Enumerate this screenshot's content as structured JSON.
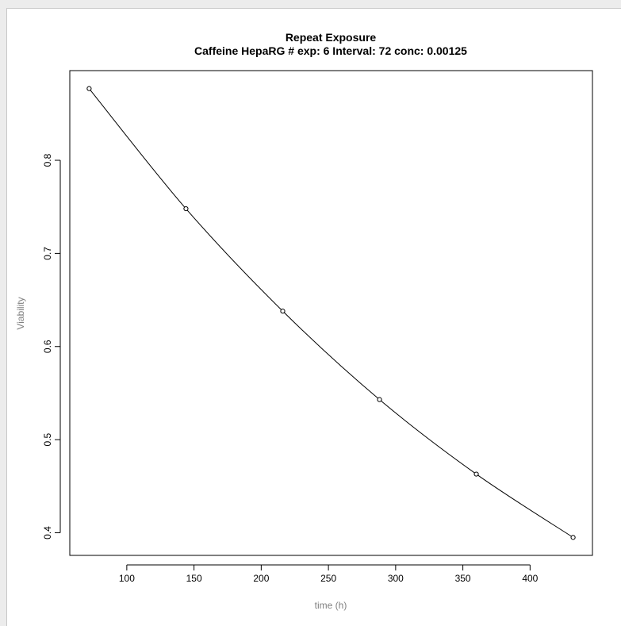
{
  "chart_data": {
    "type": "line",
    "title": "Repeat Exposure",
    "subtitle": "Caffeine HepaRG # exp: 6 Interval: 72 conc: 0.00125",
    "xlabel": "time (h)",
    "ylabel": "Viability",
    "x": [
      72,
      144,
      216,
      288,
      360,
      432
    ],
    "y": [
      0.877,
      0.748,
      0.638,
      0.543,
      0.463,
      0.395
    ],
    "xlim": [
      57.6,
      446.4
    ],
    "ylim": [
      0.3757,
      0.8963
    ],
    "xticks": [
      100,
      150,
      200,
      250,
      300,
      350,
      400
    ],
    "yticks": [
      0.4,
      0.5,
      0.6,
      0.7,
      0.8
    ],
    "grid": false,
    "legend": "none",
    "line_color": "#000000",
    "marker": "open-circle"
  }
}
